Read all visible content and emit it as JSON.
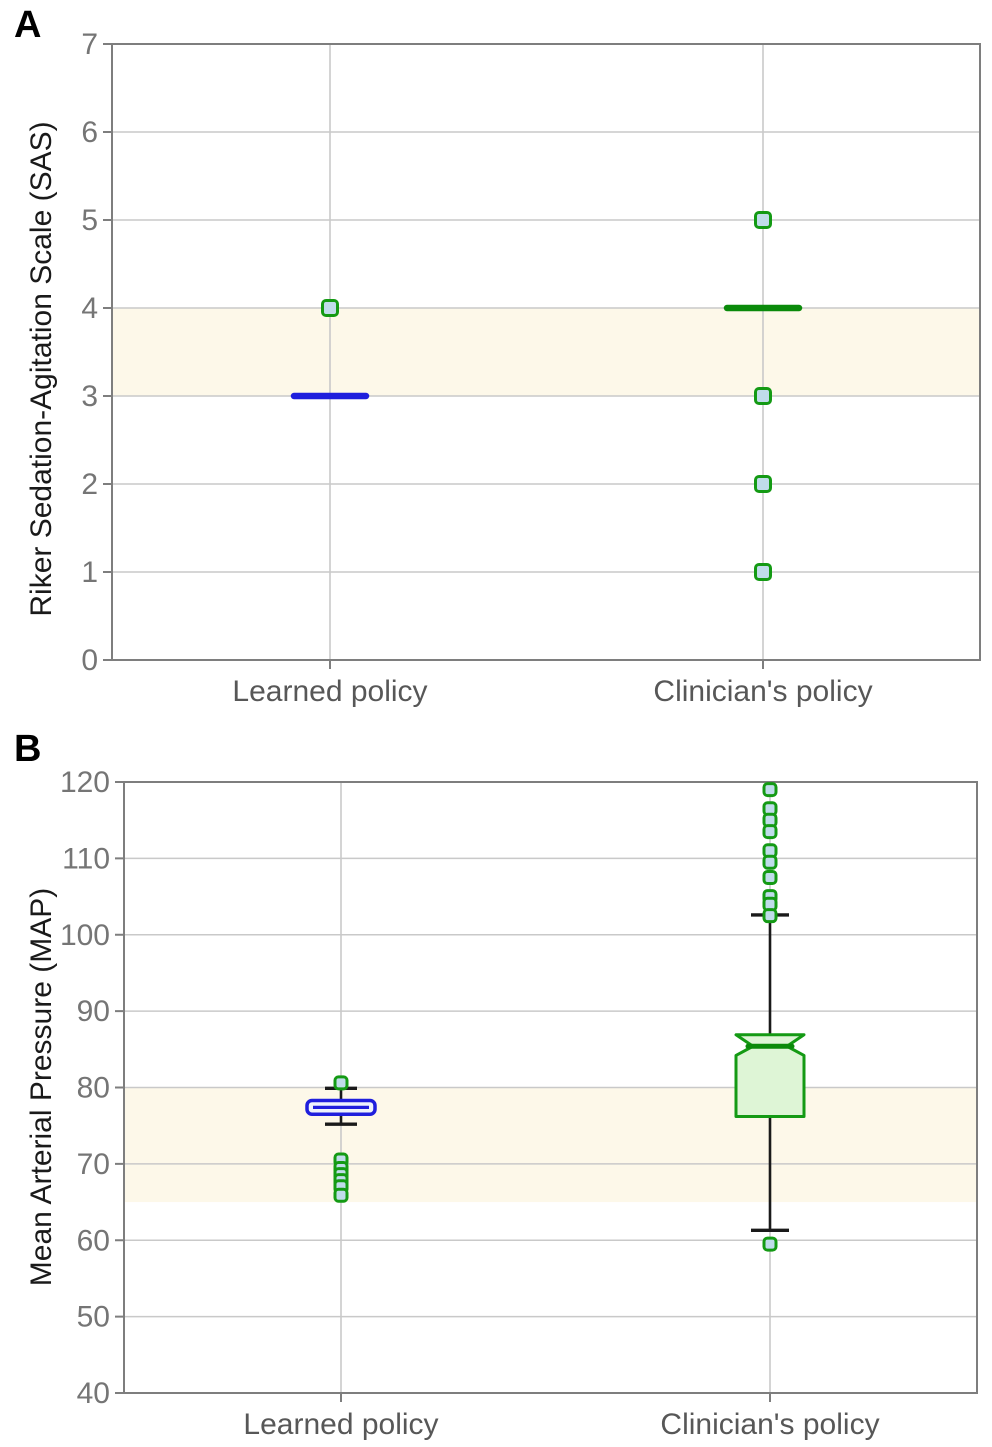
{
  "colors": {
    "band": "#fdf8e9",
    "grid": "#c9c9c9",
    "frame": "#7e7e7e",
    "tick_label": "#757575",
    "category_label": "#575757",
    "axis_label": "#1a1a1a",
    "panel_label": "#000000",
    "blue": "#1f1fdd",
    "blue_box_fill": "#eef3fd",
    "green": "#149a14",
    "green_dark": "#0a8a0a",
    "green_box_fill": "#def5d6",
    "marker_fill": "#c0dcea",
    "whisker": "#1a1a1a"
  },
  "chart_data": [
    {
      "panel_label": "A",
      "type": "box",
      "ylabel": "Riker Sedation-Agitation Scale (SAS)",
      "ylim": [
        0,
        7
      ],
      "yticks": [
        0,
        1,
        2,
        3,
        4,
        5,
        6,
        7
      ],
      "categories": [
        "Learned policy",
        "Clinician's policy"
      ],
      "target_band": [
        3,
        4
      ],
      "grid": true,
      "series": [
        {
          "name": "Learned policy",
          "style": "median-only",
          "median": 3,
          "median_color": "#1f1fdd",
          "outliers": [
            4
          ]
        },
        {
          "name": "Clinician's policy",
          "style": "median-only",
          "median": 4,
          "median_color": "#0a8a0a",
          "outliers": [
            5,
            3,
            2,
            1
          ]
        }
      ]
    },
    {
      "panel_label": "B",
      "type": "box",
      "ylabel": "Mean Arterial Pressure (MAP)",
      "ylim": [
        40,
        120
      ],
      "yticks": [
        40,
        50,
        60,
        70,
        80,
        90,
        100,
        110,
        120
      ],
      "categories": [
        "Learned policy",
        "Clinician's policy"
      ],
      "target_band": [
        65,
        80
      ],
      "grid": true,
      "series": [
        {
          "name": "Learned policy",
          "style": "box",
          "notched": false,
          "box_color": "#1f1fdd",
          "box_fill": "#eef3fd",
          "q1": 76.5,
          "median": 77.4,
          "q3": 78.3,
          "whisker_low": 75.2,
          "whisker_high": 79.9,
          "outliers_high": [
            80.6
          ],
          "outliers_low": [
            70.5,
            69.4,
            68.6,
            67.8,
            67.0,
            65.9
          ]
        },
        {
          "name": "Clinician's policy",
          "style": "box",
          "notched": true,
          "box_color": "#149a14",
          "box_fill": "#def5d6",
          "median_color": "#0a8a0a",
          "q1": 76.2,
          "median": 85.4,
          "q3": 86.9,
          "notch_low": 84.2,
          "whisker_low": 61.3,
          "whisker_high": 102.6,
          "outliers_high": [
            119,
            116.5,
            115,
            113.5,
            111,
            109.5,
            107.5,
            105,
            104,
            102.5
          ],
          "outliers_low": [
            59.5
          ]
        }
      ]
    }
  ]
}
